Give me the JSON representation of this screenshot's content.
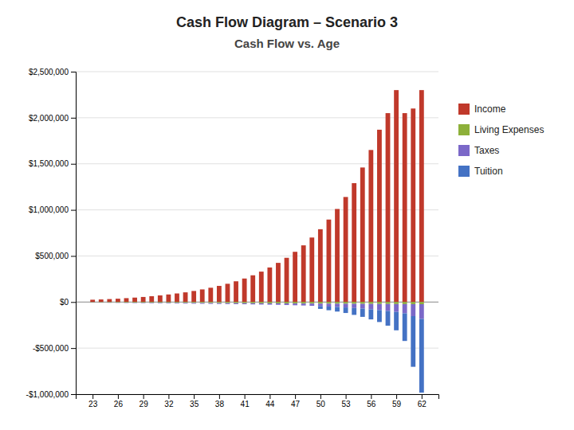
{
  "chart_data": {
    "type": "bar",
    "title": "Cash Flow Diagram – Scenario 3",
    "subtitle": "Cash Flow vs. Age",
    "stacked": true,
    "grid": true,
    "legend": "right",
    "x": [
      23,
      24,
      25,
      26,
      27,
      28,
      29,
      30,
      31,
      32,
      33,
      34,
      35,
      36,
      37,
      38,
      39,
      40,
      41,
      42,
      43,
      44,
      45,
      46,
      47,
      48,
      49,
      50,
      51,
      52,
      53,
      54,
      55,
      56,
      57,
      58,
      59,
      60,
      61,
      62
    ],
    "xlim": [
      21,
      64
    ],
    "xticks": [
      23,
      26,
      29,
      32,
      35,
      38,
      41,
      44,
      47,
      50,
      53,
      56,
      59,
      62
    ],
    "ylim": [
      -1000000,
      2500000
    ],
    "yticks": [
      {
        "value": -1000000,
        "label": "-$1,000,000"
      },
      {
        "value": -500000,
        "label": "-$500,000"
      },
      {
        "value": 0,
        "label": "$0"
      },
      {
        "value": 500000,
        "label": "$500,000"
      },
      {
        "value": 1000000,
        "label": "$1,000,000"
      },
      {
        "value": 1500000,
        "label": "$1,500,000"
      },
      {
        "value": 2000000,
        "label": "$2,000,000"
      },
      {
        "value": 2500000,
        "label": "$2,500,000"
      }
    ],
    "series": [
      {
        "name": "Income",
        "color": "#c0392b",
        "values": [
          25000,
          28000,
          32000,
          36000,
          42000,
          48000,
          55000,
          63000,
          72000,
          82000,
          93000,
          105000,
          120000,
          137000,
          155000,
          175000,
          198000,
          225000,
          255000,
          290000,
          330000,
          375000,
          425000,
          480000,
          545000,
          615000,
          700000,
          790000,
          895000,
          1010000,
          1140000,
          1290000,
          1460000,
          1650000,
          1870000,
          2050000,
          2300000,
          2050000,
          2100000,
          2300000
        ]
      },
      {
        "name": "Living Expenses",
        "color": "#8db03a",
        "values": [
          -4000,
          -4500,
          -5000,
          -5500,
          -6000,
          -6500,
          -7000,
          -7500,
          -8000,
          -8500,
          -9000,
          -9500,
          -10000,
          -10500,
          -11000,
          -11500,
          -12000,
          -12500,
          -13000,
          -13500,
          -14000,
          -14500,
          -15000,
          -15500,
          -16000,
          -16500,
          -17000,
          -17500,
          -18000,
          -18500,
          -19000,
          -19500,
          -20000,
          -20500,
          -21000,
          -21500,
          -22000,
          -22500,
          -23000,
          -23500
        ]
      },
      {
        "name": "Taxes",
        "color": "#7b68c8",
        "values": [
          -2000,
          -2500,
          -3000,
          -3500,
          -4000,
          -4500,
          -5000,
          -5500,
          -6000,
          -6500,
          -7000,
          -7500,
          -8000,
          -8500,
          -9000,
          -9500,
          -10000,
          -10500,
          -11000,
          -12000,
          -13000,
          -14000,
          -15000,
          -17000,
          -19000,
          -21000,
          -24000,
          -27000,
          -31000,
          -35000,
          -40000,
          -45000,
          -51000,
          -58000,
          -66000,
          -75000,
          -85000,
          -100000,
          -130000,
          -160000
        ]
      },
      {
        "name": "Tuition",
        "color": "#4472c4",
        "values": [
          0,
          0,
          0,
          0,
          0,
          0,
          0,
          0,
          0,
          0,
          0,
          0,
          0,
          0,
          0,
          0,
          0,
          0,
          0,
          0,
          0,
          0,
          0,
          0,
          0,
          0,
          0,
          -30000,
          -40000,
          -50000,
          -60000,
          -75000,
          -90000,
          -110000,
          -130000,
          -160000,
          -200000,
          -300000,
          -550000,
          -800000
        ]
      }
    ]
  }
}
